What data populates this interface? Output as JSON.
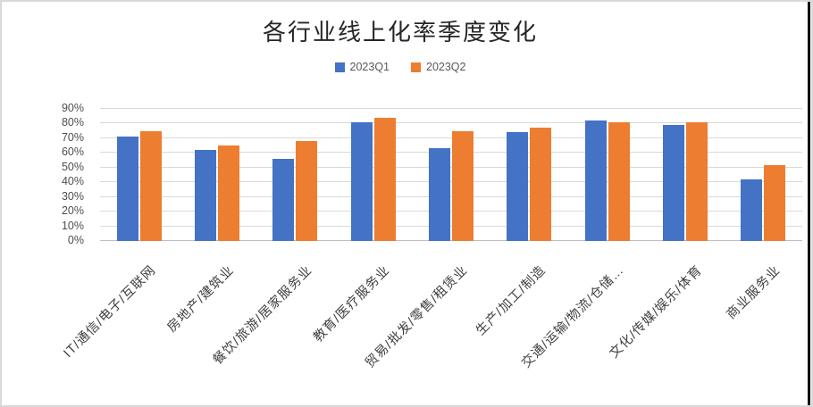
{
  "title": "各行业线上化率季度变化",
  "chart_data": {
    "type": "bar",
    "title": "各行业线上化率季度变化",
    "categories": [
      "IT/通信/电子/互联网",
      "房地产/建筑业",
      "餐饮/旅游/居家服务业",
      "教育/医疗服务业",
      "贸易/批发/零售/租赁业",
      "生产/加工/制造",
      "交通/运输/物流/仓储…",
      "文化/传媒/娱乐/体育",
      "商业服务业"
    ],
    "series": [
      {
        "name": "2023Q1",
        "color": "#4472C4",
        "values": [
          71,
          62,
          56,
          81,
          63,
          74,
          82,
          79,
          42
        ]
      },
      {
        "name": "2023Q2",
        "color": "#ED7D31",
        "values": [
          75,
          65,
          68,
          84,
          75,
          77,
          81,
          81,
          52
        ]
      }
    ],
    "unit": "%",
    "ylim": [
      0,
      90
    ],
    "y_ticks": [
      "90%",
      "80%",
      "70%",
      "60%",
      "50%",
      "40%",
      "30%",
      "20%",
      "10%",
      "0%"
    ],
    "grid": true,
    "legend_position": "top-center",
    "xlabel": "",
    "ylabel": ""
  },
  "colors": {
    "bar_q1": "#4472C4",
    "bar_q2": "#ED7D31",
    "gridline": "#D9D9D9",
    "axis_line": "#BFBFBF",
    "text": "#595959",
    "title_text": "#262626",
    "frame_border": "#D9D9D9",
    "right_edge_line": "#0A0A0A"
  }
}
